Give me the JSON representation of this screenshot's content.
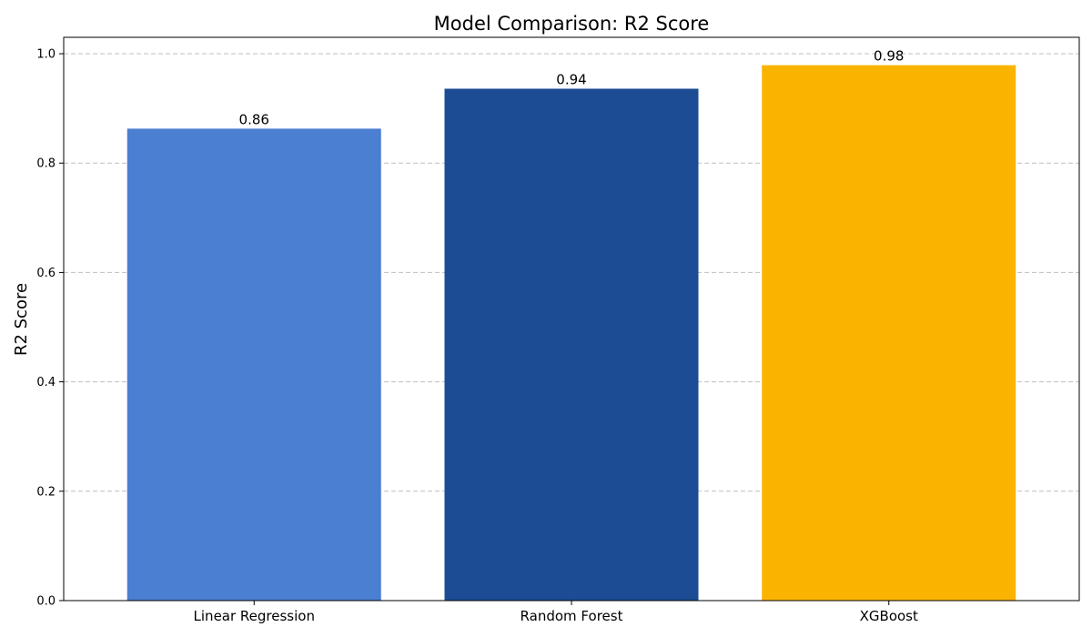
{
  "chart_data": {
    "type": "bar",
    "title": "Model Comparison: R2 Score",
    "xlabel": "",
    "ylabel": "R2 Score",
    "categories": [
      "Linear Regression",
      "Random Forest",
      "XGBoost"
    ],
    "values": [
      0.863,
      0.936,
      0.979
    ],
    "value_labels": [
      "0.86",
      "0.94",
      "0.98"
    ],
    "colors": [
      "#4a7fd1",
      "#1b4c94",
      "#fab400"
    ],
    "ylim": [
      0.0,
      1.03
    ],
    "yticks": [
      0.0,
      0.2,
      0.4,
      0.6,
      0.8,
      1.0
    ],
    "ytick_labels": [
      "0.0",
      "0.2",
      "0.4",
      "0.6",
      "0.8",
      "1.0"
    ],
    "grid": "y-dashed",
    "legend": "none"
  }
}
